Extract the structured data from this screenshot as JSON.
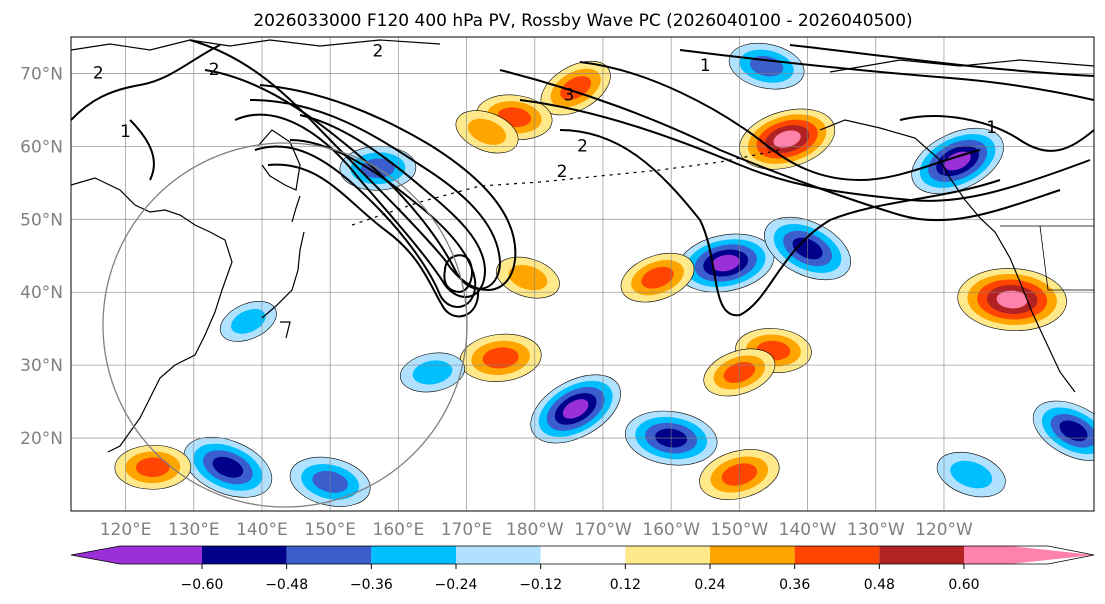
{
  "chart_data": {
    "type": "heatmap",
    "title": "2026033000 F120 400 hPa PV, Rossby Wave PC (2026040100 - 2026040500)",
    "map": {
      "lon_range": [
        112,
        262
      ],
      "lat_range": [
        10,
        75
      ],
      "lon_ticks": [
        {
          "lon": 120,
          "label": "120°E"
        },
        {
          "lon": 130,
          "label": "130°E"
        },
        {
          "lon": 140,
          "label": "140°E"
        },
        {
          "lon": 150,
          "label": "150°E"
        },
        {
          "lon": 160,
          "label": "160°E"
        },
        {
          "lon": 170,
          "label": "170°E"
        },
        {
          "lon": 180,
          "label": "180°W"
        },
        {
          "lon": 190,
          "label": "170°W"
        },
        {
          "lon": 200,
          "label": "160°W"
        },
        {
          "lon": 210,
          "label": "150°W"
        },
        {
          "lon": 220,
          "label": "140°W"
        },
        {
          "lon": 230,
          "label": "130°W"
        },
        {
          "lon": 240,
          "label": "120°W"
        }
      ],
      "lat_ticks": [
        {
          "lat": 20,
          "label": "20°N"
        },
        {
          "lat": 30,
          "label": "30°N"
        },
        {
          "lat": 40,
          "label": "40°N"
        },
        {
          "lat": 50,
          "label": "50°N"
        },
        {
          "lat": 60,
          "label": "60°N"
        },
        {
          "lat": 70,
          "label": "70°N"
        }
      ],
      "grid": true
    },
    "colorbar": {
      "levels": [
        "−0.60",
        "−0.48",
        "−0.36",
        "−0.24",
        "−0.12",
        "0.12",
        "0.24",
        "0.36",
        "0.48",
        "0.60"
      ],
      "level_values": [
        -0.6,
        -0.48,
        -0.36,
        -0.24,
        -0.12,
        0.12,
        0.24,
        0.36,
        0.48,
        0.6
      ],
      "colors": [
        "#9b30d9",
        "#00008b",
        "#3a5fcd",
        "#00bfff",
        "#b0e2ff",
        "#ffffff",
        "#ffe98a",
        "#ffa500",
        "#ff4500",
        "#b22222",
        "#ff82ab"
      ],
      "extend": "both"
    },
    "pv_contour_labels": [
      {
        "lon": 116,
        "lat": 70,
        "label": "2"
      },
      {
        "lon": 133,
        "lat": 70.5,
        "label": "2"
      },
      {
        "lon": 120,
        "lat": 62,
        "label": "1"
      },
      {
        "lon": 157,
        "lat": 73,
        "label": "2"
      },
      {
        "lon": 185,
        "lat": 67,
        "label": "3"
      },
      {
        "lon": 187,
        "lat": 60,
        "label": "2"
      },
      {
        "lon": 184,
        "lat": 56.5,
        "label": "2"
      },
      {
        "lon": 205,
        "lat": 71,
        "label": "1"
      },
      {
        "lon": 247,
        "lat": 62.5,
        "label": "1"
      }
    ],
    "anomaly_features": [
      {
        "lon": 186,
        "lat": 68,
        "value": 0.4
      },
      {
        "lon": 177,
        "lat": 64,
        "value": 0.4
      },
      {
        "lon": 217,
        "lat": 61,
        "value": 0.6
      },
      {
        "lon": 173,
        "lat": 62,
        "value": 0.3
      },
      {
        "lon": 157,
        "lat": 57,
        "value": -0.4
      },
      {
        "lon": 242,
        "lat": 58,
        "value": -0.6
      },
      {
        "lon": 214,
        "lat": 71,
        "value": -0.4
      },
      {
        "lon": 208,
        "lat": 44,
        "value": -0.6
      },
      {
        "lon": 220,
        "lat": 46,
        "value": -0.55
      },
      {
        "lon": 250,
        "lat": 39,
        "value": 0.7
      },
      {
        "lon": 198,
        "lat": 42,
        "value": 0.4
      },
      {
        "lon": 179,
        "lat": 42,
        "value": 0.3
      },
      {
        "lon": 175,
        "lat": 31,
        "value": 0.45
      },
      {
        "lon": 186,
        "lat": 24,
        "value": -0.6
      },
      {
        "lon": 200,
        "lat": 20,
        "value": -0.55
      },
      {
        "lon": 210,
        "lat": 15,
        "value": 0.45
      },
      {
        "lon": 135,
        "lat": 16,
        "value": -0.55
      },
      {
        "lon": 124,
        "lat": 16,
        "value": 0.4
      },
      {
        "lon": 138,
        "lat": 36,
        "value": -0.25
      },
      {
        "lon": 150,
        "lat": 14,
        "value": -0.45
      },
      {
        "lon": 165,
        "lat": 29,
        "value": -0.3
      },
      {
        "lon": 259,
        "lat": 21,
        "value": -0.5
      },
      {
        "lon": 215,
        "lat": 32,
        "value": 0.4
      },
      {
        "lon": 210,
        "lat": 29,
        "value": 0.38
      },
      {
        "lon": 244,
        "lat": 15,
        "value": -0.35
      }
    ]
  }
}
